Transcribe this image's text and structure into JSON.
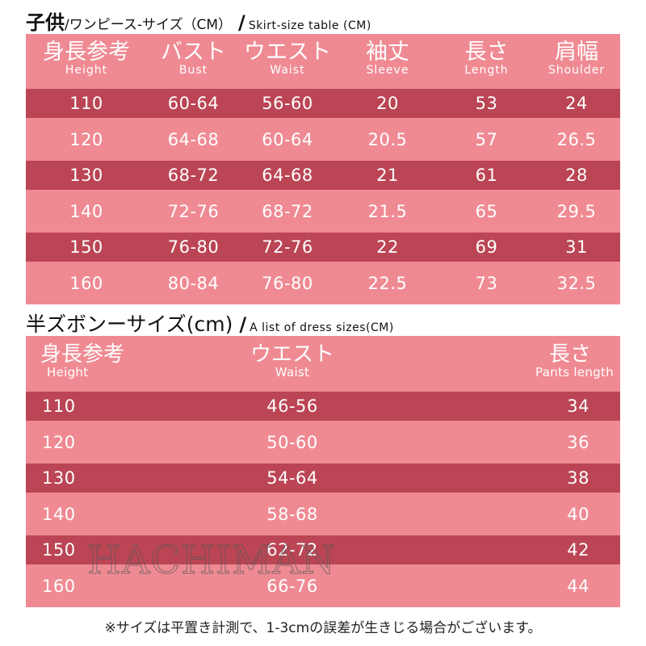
{
  "table1": {
    "title_bold": "子供",
    "title_jp": "/ワンピース-サイズ（CM）",
    "title_en": "Skirt-size table (CM)",
    "headers": [
      {
        "jp": "身長参考",
        "en": "Height"
      },
      {
        "jp": "バスト",
        "en": "Bust"
      },
      {
        "jp": "ウエスト",
        "en": "Waist"
      },
      {
        "jp": "袖丈",
        "en": "Sleeve"
      },
      {
        "jp": "長さ",
        "en": "Length"
      },
      {
        "jp": "肩幅",
        "en": "Shoulder"
      }
    ],
    "rows": [
      [
        "110",
        "60-64",
        "56-60",
        "20",
        "53",
        "24"
      ],
      [
        "120",
        "64-68",
        "60-64",
        "20.5",
        "57",
        "26.5"
      ],
      [
        "130",
        "68-72",
        "64-68",
        "21",
        "61",
        "28"
      ],
      [
        "140",
        "72-76",
        "68-72",
        "21.5",
        "65",
        "29.5"
      ],
      [
        "150",
        "76-80",
        "72-76",
        "22",
        "69",
        "31"
      ],
      [
        "160",
        "80-84",
        "76-80",
        "22.5",
        "73",
        "32.5"
      ]
    ]
  },
  "table2": {
    "title_jp": "半ズボンーサイズ(cm)",
    "title_en": "A list of dress sizes(CM)",
    "headers": [
      {
        "jp": "身長参考",
        "en": "Height"
      },
      {
        "jp": "ウエスト",
        "en": "Waist"
      },
      {
        "jp": "長さ",
        "en": "Pants length"
      }
    ],
    "rows": [
      [
        "110",
        "46-56",
        "34"
      ],
      [
        "120",
        "50-60",
        "36"
      ],
      [
        "130",
        "54-64",
        "38"
      ],
      [
        "140",
        "58-68",
        "40"
      ],
      [
        "150",
        "62-72",
        "42"
      ],
      [
        "160",
        "66-76",
        "44"
      ]
    ]
  },
  "watermark": "HACHIMAN",
  "note": "※サイズは平置き計測で、1-3cmの誤差が生きじる場合がございます。",
  "colors": {
    "header": "#ef8a93",
    "row_dark": "#bb4554",
    "row_light": "#ef8a93",
    "text": "#ffffff"
  }
}
